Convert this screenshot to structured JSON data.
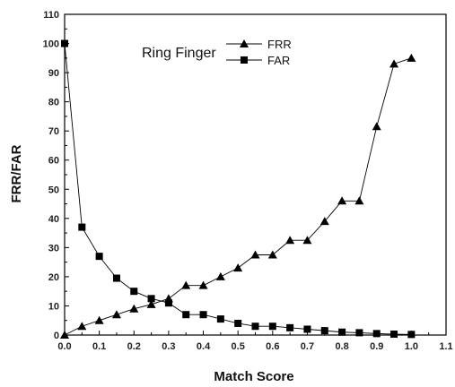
{
  "chart_data": {
    "type": "line",
    "title": "Ring Finger",
    "xlabel": "Match Score",
    "ylabel": "FRR/FAR",
    "xlim": [
      0.0,
      1.1
    ],
    "ylim": [
      0,
      110
    ],
    "xticks": [
      "0.0",
      "0.1",
      "0.2",
      "0.3",
      "0.4",
      "0.5",
      "0.6",
      "0.7",
      "0.8",
      "0.9",
      "1.0",
      "1.1"
    ],
    "yticks": [
      "0",
      "10",
      "20",
      "30",
      "40",
      "50",
      "60",
      "70",
      "80",
      "90",
      "100",
      "110"
    ],
    "grid": false,
    "legend_position": "top-left",
    "x": [
      0.0,
      0.05,
      0.1,
      0.15,
      0.2,
      0.25,
      0.3,
      0.35,
      0.4,
      0.45,
      0.5,
      0.55,
      0.6,
      0.65,
      0.7,
      0.75,
      0.8,
      0.85,
      0.9,
      0.95,
      1.0
    ],
    "series": [
      {
        "name": "FRR",
        "marker": "triangle",
        "color": "#000000",
        "values": [
          0,
          3,
          5,
          7,
          9,
          10.5,
          12.5,
          17,
          17,
          20,
          23,
          27.5,
          27.5,
          32.5,
          32.5,
          39,
          46,
          46,
          71.5,
          93,
          95
        ]
      },
      {
        "name": "FAR",
        "marker": "square",
        "color": "#000000",
        "values": [
          100,
          37,
          27,
          19.5,
          15,
          12.5,
          11,
          7,
          7,
          5.5,
          4,
          3,
          3,
          2.5,
          2,
          1.5,
          1,
          0.8,
          0.5,
          0.3,
          0.2
        ]
      }
    ]
  }
}
